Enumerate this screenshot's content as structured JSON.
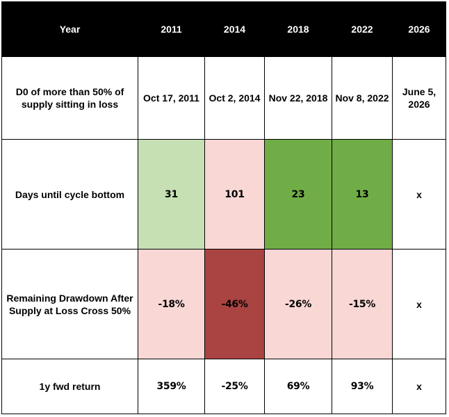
{
  "colors": {
    "header_bg": "#000000",
    "header_text": "#ffffff",
    "light_green": "#c6e0b4",
    "green": "#70ad47",
    "light_red": "#f8d7d5",
    "dark_red": "#a94442"
  },
  "header": {
    "label": "Year",
    "years": [
      "2011",
      "2014",
      "2018",
      "2022",
      "2026"
    ]
  },
  "rows": {
    "dates": {
      "label": "D0 of more than 50% of supply sitting in loss",
      "values": [
        "Oct 17, 2011",
        "Oct 2, 2014",
        "Nov 22, 2018",
        "Nov 8, 2022",
        "June 5, 2026"
      ]
    },
    "days": {
      "label": "Days until cycle bottom",
      "values": [
        "31",
        "101",
        "23",
        "13",
        "x"
      ],
      "fills": [
        "#c6e0b4",
        "#f8d7d5",
        "#70ad47",
        "#70ad47",
        "#ffffff"
      ]
    },
    "drawdown": {
      "label": "Remaining Drawdown After Supply at Loss Cross 50%",
      "values": [
        "-18%",
        "-46%",
        "-26%",
        "-15%",
        "x"
      ],
      "fills": [
        "#f8d7d5",
        "#a94442",
        "#f8d7d5",
        "#f8d7d5",
        "#ffffff"
      ]
    },
    "return": {
      "label": "1y fwd return",
      "values": [
        "359%",
        "-25%",
        "69%",
        "93%",
        "x"
      ]
    }
  }
}
